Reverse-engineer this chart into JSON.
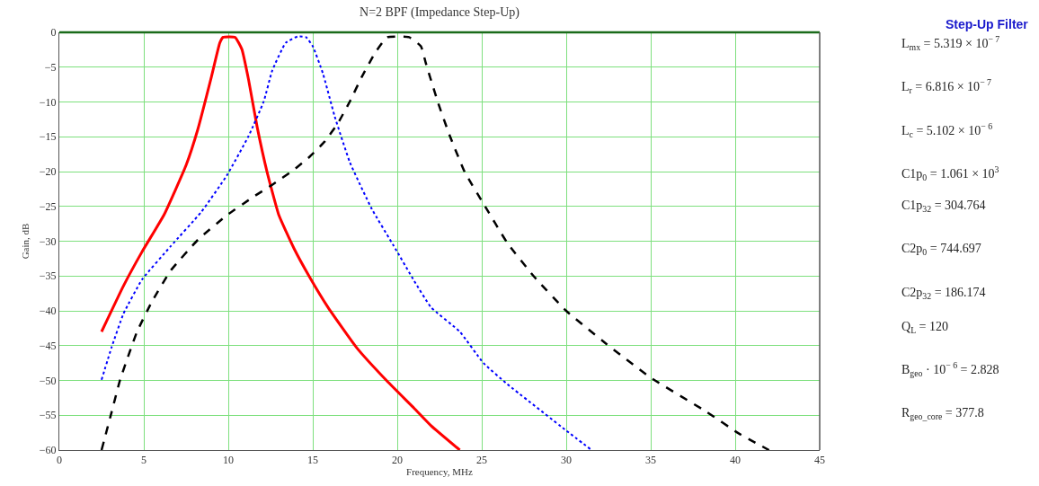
{
  "chart_data": {
    "type": "line",
    "title": "N=2 BPF (Impedance Step-Up)",
    "xlabel": "Frequency, MHz",
    "ylabel": "Gain, dB",
    "xlim": [
      0,
      45
    ],
    "ylim": [
      -60,
      0
    ],
    "xticks": [
      0,
      5,
      10,
      15,
      20,
      25,
      30,
      35,
      40,
      45
    ],
    "yticks": [
      {
        "value": -60,
        "label": "−60"
      },
      {
        "value": -55,
        "label": "−55"
      },
      {
        "value": -50,
        "label": "−50"
      },
      {
        "value": -45,
        "label": "−45"
      },
      {
        "value": -40,
        "label": "−40"
      },
      {
        "value": -35,
        "label": "−35"
      },
      {
        "value": -30,
        "label": "−30"
      },
      {
        "value": -25,
        "label": "−25"
      },
      {
        "value": -20,
        "label": "−20"
      },
      {
        "value": -15,
        "label": "−15"
      },
      {
        "value": -10,
        "label": "−10"
      },
      {
        "value": -5,
        "label": "−5"
      },
      0
    ],
    "grid": true,
    "marker": "none",
    "series": [
      {
        "color": "#ff0000",
        "line_style": "solid",
        "x": [
          2.5,
          3.8,
          4.9,
          6.2,
          7.5,
          8.2,
          9.0,
          9.5,
          9.7,
          10.4,
          10.8,
          11.2,
          11.7,
          12.3,
          13.0,
          13.9,
          14.8,
          15.9,
          17.6,
          19.4,
          21.0,
          22.0,
          23.7
        ],
        "values": [
          -43,
          -36.4,
          -31.5,
          -26.2,
          -19.1,
          -13.9,
          -6.4,
          -1.5,
          -0.7,
          -0.7,
          -2.4,
          -6.8,
          -13.5,
          -20.1,
          -26.3,
          -31.1,
          -35.1,
          -39.5,
          -45.3,
          -50.1,
          -54,
          -56.5,
          -60
        ]
      },
      {
        "color": "#0000ff",
        "line_style": "dotted",
        "x": [
          2.5,
          3.1,
          3.8,
          4.9,
          6.6,
          8.4,
          9.9,
          11.2,
          12.1,
          12.6,
          13.4,
          14.1,
          14.6,
          15.0,
          15.6,
          16.3,
          17.2,
          18.5,
          19.8,
          21.0,
          22.0,
          23.7,
          25.1,
          26.5,
          30.0,
          31.5
        ],
        "values": [
          -49.9,
          -45.2,
          -40.4,
          -35.5,
          -30.7,
          -25.8,
          -20.6,
          -14.9,
          -9.9,
          -5.5,
          -1.5,
          -0.6,
          -0.7,
          -2.0,
          -5.9,
          -12.1,
          -18.7,
          -25.4,
          -30.7,
          -35.7,
          -39.5,
          -43.0,
          -47.5,
          -50.5,
          -57.2,
          -60
        ]
      },
      {
        "color": "#000000",
        "line_style": "dashed",
        "x": [
          2.5,
          3.1,
          3.6,
          4.6,
          5.5,
          6.6,
          8.2,
          9.9,
          11.5,
          12.6,
          13.9,
          14.8,
          15.7,
          16.5,
          17.2,
          17.9,
          18.7,
          19.4,
          20.7,
          21.4,
          21.7,
          22.4,
          23.1,
          24.0,
          25.1,
          26.5,
          28.1,
          30.0,
          32.4,
          35.0,
          38.3,
          40.2,
          42.0
        ],
        "values": [
          -60,
          -54.5,
          -49.9,
          -43,
          -38.6,
          -34.2,
          -29.8,
          -26.3,
          -23.6,
          -21.9,
          -19.7,
          -17.9,
          -15.7,
          -13.0,
          -9.9,
          -6.4,
          -2.9,
          -0.7,
          -0.7,
          -2.0,
          -4.5,
          -10.0,
          -14.8,
          -20.1,
          -24.6,
          -30.2,
          -35.1,
          -40.0,
          -44.8,
          -49.6,
          -54.5,
          -57.6,
          -60
        ]
      }
    ],
    "annotations": [
      "Step-Up Filter",
      "L$_{mx}$ = 5.319 × 10$^{− 7}$",
      "L$_{r}$ = 6.816 × 10$^{− 7}$",
      "L$_{c}$ = 5.102 × 10$^{− 6}$",
      "C1p$_{0}$ = 1.061 × 10$^{3}$",
      "C1p$_{32}$ = 304.764",
      "C2p$_{0}$ = 744.697",
      "C2p$_{32}$ = 186.174",
      "Q$_{L}$ = 120",
      "B$_{geo}$ · 10$^{− 6}$ = 2.828",
      "R$_{geo_core}$ = 377.8"
    ]
  }
}
